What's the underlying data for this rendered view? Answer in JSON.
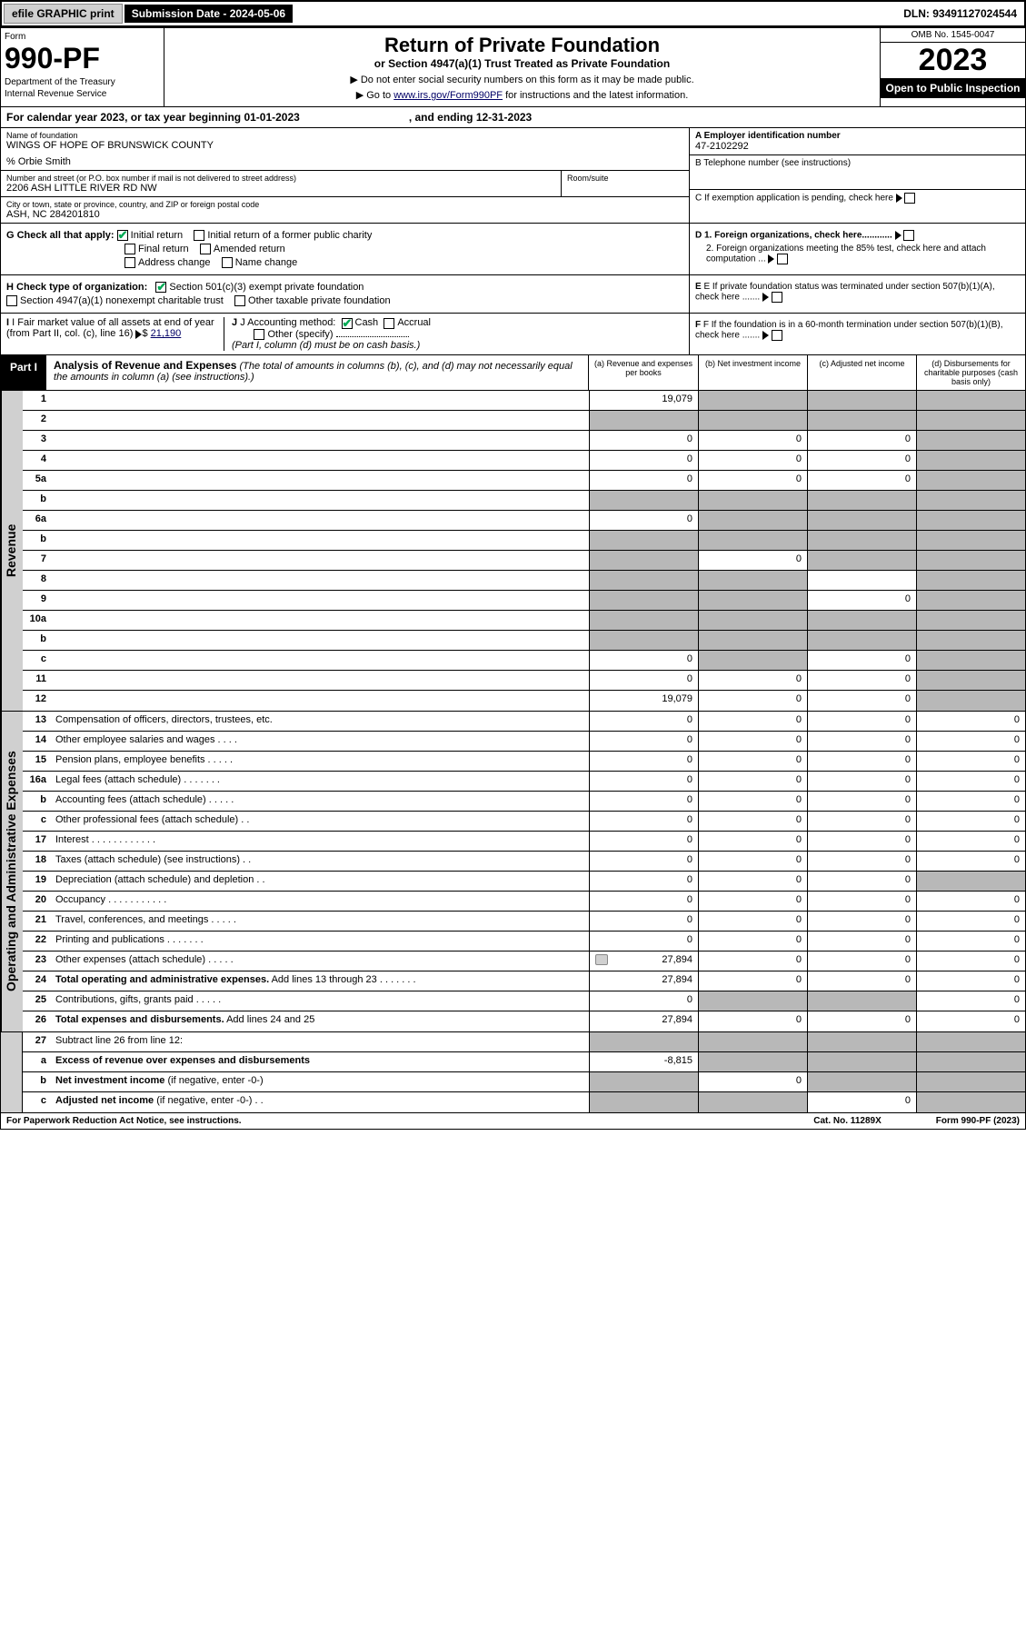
{
  "topbar": {
    "efile_btn": "efile GRAPHIC print",
    "sub_date_lbl": "Submission Date - 2024-05-06",
    "dln": "DLN: 93491127024544"
  },
  "header": {
    "form_lbl": "Form",
    "form_num": "990-PF",
    "dept1": "Department of the Treasury",
    "dept2": "Internal Revenue Service",
    "title": "Return of Private Foundation",
    "subtitle": "or Section 4947(a)(1) Trust Treated as Private Foundation",
    "note1": "▶ Do not enter social security numbers on this form as it may be made public.",
    "note2_pre": "▶ Go to ",
    "note2_link": "www.irs.gov/Form990PF",
    "note2_post": " for instructions and the latest information.",
    "omb": "OMB No. 1545-0047",
    "year": "2023",
    "inspect": "Open to Public Inspection"
  },
  "cal": {
    "text1": "For calendar year 2023, or tax year beginning 01-01-2023",
    "text2": ", and ending 12-31-2023"
  },
  "info": {
    "name_lbl": "Name of foundation",
    "name": "WINGS OF HOPE OF BRUNSWICK COUNTY",
    "care_of": "% Orbie Smith",
    "addr_lbl": "Number and street (or P.O. box number if mail is not delivered to street address)",
    "addr": "2206 ASH LITTLE RIVER RD NW",
    "room_lbl": "Room/suite",
    "city_lbl": "City or town, state or province, country, and ZIP or foreign postal code",
    "city": "ASH, NC  284201810",
    "ein_lbl": "A Employer identification number",
    "ein": "47-2102292",
    "phone_lbl": "B Telephone number (see instructions)",
    "c_lbl": "C If exemption application is pending, check here",
    "d1": "D 1. Foreign organizations, check here............",
    "d2": "2. Foreign organizations meeting the 85% test, check here and attach computation ...",
    "e_lbl": "E  If private foundation status was terminated under section 507(b)(1)(A), check here .......",
    "f_lbl": "F  If the foundation is in a 60-month termination under section 507(b)(1)(B), check here ......."
  },
  "g": {
    "lbl": "G Check all that apply:",
    "opts": [
      "Initial return",
      "Initial return of a former public charity",
      "Final return",
      "Amended return",
      "Address change",
      "Name change"
    ]
  },
  "h": {
    "lbl": "H Check type of organization:",
    "opt1": "Section 501(c)(3) exempt private foundation",
    "opt2": "Section 4947(a)(1) nonexempt charitable trust",
    "opt3": "Other taxable private foundation"
  },
  "i": {
    "lbl": "I Fair market value of all assets at end of year (from Part II, col. (c), line 16)",
    "val": "21,190"
  },
  "j": {
    "lbl": "J Accounting method:",
    "cash": "Cash",
    "accrual": "Accrual",
    "other": "Other (specify)",
    "note": "(Part I, column (d) must be on cash basis.)"
  },
  "part1": {
    "lbl": "Part I",
    "title": "Analysis of Revenue and Expenses",
    "title_note": "(The total of amounts in columns (b), (c), and (d) may not necessarily equal the amounts in column (a) (see instructions).)",
    "col_a": "(a)   Revenue and expenses per books",
    "col_b": "(b)   Net investment income",
    "col_c": "(c)   Adjusted net income",
    "col_d": "(d)   Disbursements for charitable purposes (cash basis only)"
  },
  "side": {
    "revenue": "Revenue",
    "expenses": "Operating and Administrative Expenses"
  },
  "rows": [
    {
      "n": "1",
      "d": "",
      "a": "19,079",
      "b": "",
      "c": "",
      "sb": true,
      "sc": true,
      "sd": true
    },
    {
      "n": "2",
      "d": "",
      "a": "",
      "b": "",
      "c": "",
      "sa": true,
      "sb": true,
      "sc": true,
      "sd": true,
      "html": true
    },
    {
      "n": "3",
      "d": "",
      "a": "0",
      "b": "0",
      "c": "0",
      "sd": true
    },
    {
      "n": "4",
      "d": "",
      "a": "0",
      "b": "0",
      "c": "0",
      "sd": true
    },
    {
      "n": "5a",
      "d": "",
      "a": "0",
      "b": "0",
      "c": "0",
      "sd": true
    },
    {
      "n": "b",
      "d": "",
      "a": "",
      "b": "",
      "c": "",
      "sa": true,
      "sb": true,
      "sc": true,
      "sd": true
    },
    {
      "n": "6a",
      "d": "",
      "a": "0",
      "b": "",
      "c": "",
      "sb": true,
      "sc": true,
      "sd": true
    },
    {
      "n": "b",
      "d": "",
      "a": "",
      "b": "",
      "c": "",
      "sa": true,
      "sb": true,
      "sc": true,
      "sd": true
    },
    {
      "n": "7",
      "d": "",
      "a": "",
      "b": "0",
      "c": "",
      "sa": true,
      "sc": true,
      "sd": true
    },
    {
      "n": "8",
      "d": "",
      "a": "",
      "b": "",
      "c": "",
      "sa": true,
      "sb": true,
      "sd": true
    },
    {
      "n": "9",
      "d": "",
      "a": "",
      "b": "",
      "c": "0",
      "sa": true,
      "sb": true,
      "sd": true
    },
    {
      "n": "10a",
      "d": "",
      "a": "",
      "b": "",
      "c": "",
      "sa": true,
      "sb": true,
      "sc": true,
      "sd": true
    },
    {
      "n": "b",
      "d": "",
      "a": "",
      "b": "",
      "c": "",
      "sa": true,
      "sb": true,
      "sc": true,
      "sd": true
    },
    {
      "n": "c",
      "d": "",
      "a": "0",
      "b": "",
      "c": "0",
      "sb": true,
      "sd": true
    },
    {
      "n": "11",
      "d": "",
      "a": "0",
      "b": "0",
      "c": "0",
      "sd": true
    },
    {
      "n": "12",
      "d": "",
      "a": "19,079",
      "b": "0",
      "c": "0",
      "sd": true,
      "html": true
    }
  ],
  "exp_rows": [
    {
      "n": "13",
      "d": "Compensation of officers, directors, trustees, etc.",
      "a": "0",
      "b": "0",
      "c": "0",
      "dd": "0"
    },
    {
      "n": "14",
      "d": "Other employee salaries and wages   .   .   .   .",
      "a": "0",
      "b": "0",
      "c": "0",
      "dd": "0"
    },
    {
      "n": "15",
      "d": "Pension plans, employee benefits   .   .   .   .   .",
      "a": "0",
      "b": "0",
      "c": "0",
      "dd": "0"
    },
    {
      "n": "16a",
      "d": "Legal fees (attach schedule)   .   .   .   .   .   .   .",
      "a": "0",
      "b": "0",
      "c": "0",
      "dd": "0"
    },
    {
      "n": "b",
      "d": "Accounting fees (attach schedule)   .   .   .   .   .",
      "a": "0",
      "b": "0",
      "c": "0",
      "dd": "0"
    },
    {
      "n": "c",
      "d": "Other professional fees (attach schedule)   .   .",
      "a": "0",
      "b": "0",
      "c": "0",
      "dd": "0"
    },
    {
      "n": "17",
      "d": "Interest   .   .   .   .   .   .   .   .   .   .   .   .",
      "a": "0",
      "b": "0",
      "c": "0",
      "dd": "0"
    },
    {
      "n": "18",
      "d": "Taxes (attach schedule) (see instructions)   .   .",
      "a": "0",
      "b": "0",
      "c": "0",
      "dd": "0"
    },
    {
      "n": "19",
      "d": "Depreciation (attach schedule) and depletion   .   .",
      "a": "0",
      "b": "0",
      "c": "0",
      "dd": "",
      "sd": true
    },
    {
      "n": "20",
      "d": "Occupancy   .   .   .   .   .   .   .   .   .   .   .",
      "a": "0",
      "b": "0",
      "c": "0",
      "dd": "0"
    },
    {
      "n": "21",
      "d": "Travel, conferences, and meetings   .   .   .   .   .",
      "a": "0",
      "b": "0",
      "c": "0",
      "dd": "0"
    },
    {
      "n": "22",
      "d": "Printing and publications   .   .   .   .   .   .   .",
      "a": "0",
      "b": "0",
      "c": "0",
      "dd": "0"
    },
    {
      "n": "23",
      "d": "Other expenses (attach schedule)   .   .   .   .   .",
      "a": "27,894",
      "b": "0",
      "c": "0",
      "dd": "0",
      "attach": true
    },
    {
      "n": "24",
      "d": "<b>Total operating and administrative expenses.</b> Add lines 13 through 23   .   .   .   .   .   .   .",
      "a": "27,894",
      "b": "0",
      "c": "0",
      "dd": "0",
      "html": true
    },
    {
      "n": "25",
      "d": "Contributions, gifts, grants paid   .   .   .   .   .",
      "a": "0",
      "b": "",
      "c": "",
      "dd": "0",
      "sb": true,
      "sc": true
    },
    {
      "n": "26",
      "d": "<b>Total expenses and disbursements.</b> Add lines 24 and 25",
      "a": "27,894",
      "b": "0",
      "c": "0",
      "dd": "0",
      "html": true
    }
  ],
  "sub_rows": [
    {
      "n": "27",
      "d": "Subtract line 26 from line 12:",
      "a": "",
      "b": "",
      "c": "",
      "dd": "",
      "sa": true,
      "sb": true,
      "sc": true,
      "sd": true
    },
    {
      "n": "a",
      "d": "<b>Excess of revenue over expenses and disbursements</b>",
      "a": "-8,815",
      "b": "",
      "c": "",
      "dd": "",
      "sb": true,
      "sc": true,
      "sd": true,
      "html": true
    },
    {
      "n": "b",
      "d": "<b>Net investment income</b> (if negative, enter -0-)",
      "a": "",
      "b": "0",
      "c": "",
      "dd": "",
      "sa": true,
      "sc": true,
      "sd": true,
      "html": true
    },
    {
      "n": "c",
      "d": "<b>Adjusted net income</b> (if negative, enter -0-)   .   .",
      "a": "",
      "b": "",
      "c": "0",
      "dd": "",
      "sa": true,
      "sb": true,
      "sd": true,
      "html": true
    }
  ],
  "footer": {
    "left": "For Paperwork Reduction Act Notice, see instructions.",
    "mid": "Cat. No. 11289X",
    "right": "Form 990-PF (2023)"
  }
}
